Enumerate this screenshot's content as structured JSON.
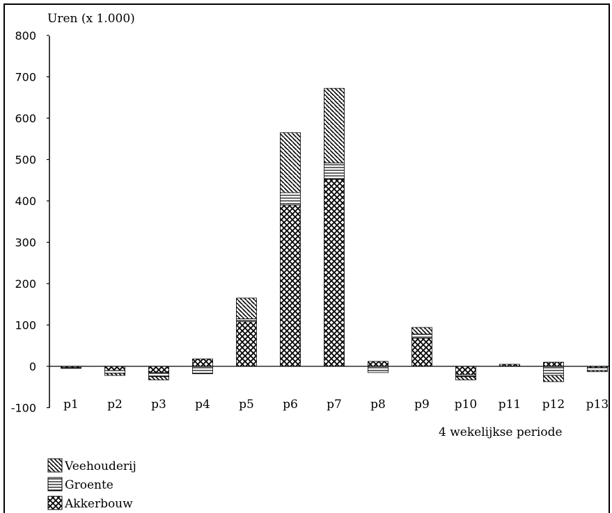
{
  "chart_data": {
    "type": "bar",
    "stacked": true,
    "ylabel": "Uren (x 1.000)",
    "xlabel": "4 wekelijkse periode",
    "ylim": [
      -100,
      800
    ],
    "yticks": [
      800,
      700,
      600,
      500,
      400,
      300,
      200,
      100,
      0,
      -100
    ],
    "categories": [
      "p1",
      "p2",
      "p3",
      "p4",
      "p5",
      "p6",
      "p7",
      "p8",
      "p9",
      "p10",
      "p11",
      "p12",
      "p13"
    ],
    "legend_position": "bottom-left",
    "series": [
      {
        "name": "Akkerbouw",
        "pattern": "crosshatch",
        "values": [
          -3,
          -10,
          -15,
          18,
          108,
          390,
          452,
          12,
          68,
          -20,
          5,
          10,
          -3
        ]
      },
      {
        "name": "Groente",
        "pattern": "horizontal",
        "values": [
          -2,
          -7,
          -10,
          -18,
          7,
          30,
          40,
          -15,
          10,
          -5,
          0,
          -22,
          -7
        ]
      },
      {
        "name": "Veehouderij",
        "pattern": "diagonal",
        "values": [
          0,
          -5,
          -8,
          0,
          50,
          145,
          180,
          0,
          16,
          -8,
          0,
          -15,
          -3
        ]
      }
    ]
  }
}
